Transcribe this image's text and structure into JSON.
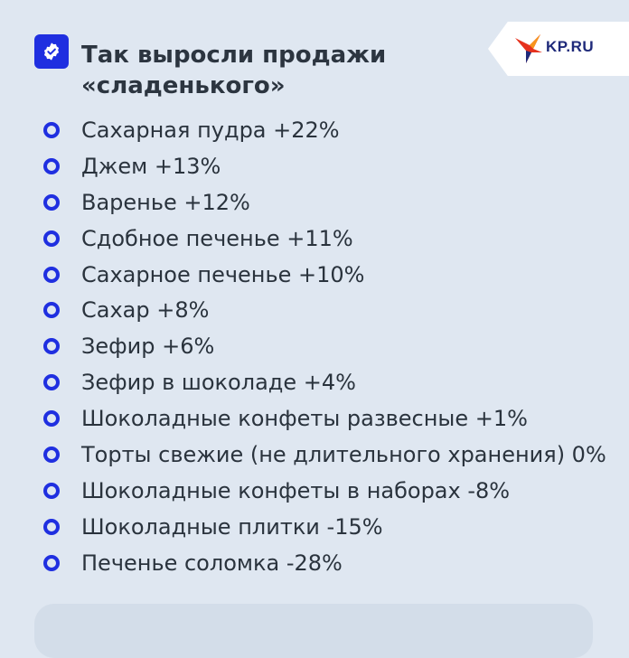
{
  "header": {
    "title_line1": "Так выросли продажи",
    "title_line2": "«сладенького»",
    "badge_icon": "verified-check-icon"
  },
  "logo": {
    "text": "KP.RU",
    "icon": "bird-logo-icon"
  },
  "colors": {
    "accent": "#1f2fe0",
    "background": "#dfe7f1"
  },
  "items": [
    "Сахарная пудра +22%",
    "Джем +13%",
    "Варенье +12%",
    "Сдобное печенье +11%",
    "Сахарное печенье +10%",
    "Сахар +8%",
    "Зефир +6%",
    "Зефир в шоколаде +4%",
    "Шоколадные конфеты развесные +1%",
    "Торты свежие (не длительного хранения) 0%",
    "Шоколадные конфеты в наборах -8%",
    "Шоколадные плитки -15%",
    "Печенье соломка -28%"
  ]
}
